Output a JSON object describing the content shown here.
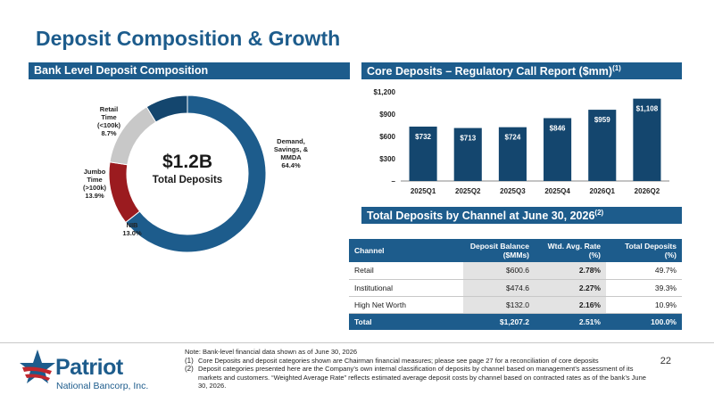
{
  "page": {
    "title": "Deposit Composition & Growth",
    "page_number": "22"
  },
  "left_section": {
    "header": "Bank Level Deposit Composition",
    "center_value": "$1.2B",
    "center_label": "Total Deposits",
    "segments": [
      {
        "name": "Demand, Savings, & MMDA",
        "pct_label": "64.4%",
        "pct": 64.4,
        "color": "#1d5c8c"
      },
      {
        "name": "NIB",
        "pct_label": "13.0%",
        "pct": 13.0,
        "color": "#9b1b1f"
      },
      {
        "name": "Jumbo Time (>100k)",
        "pct_label": "13.9%",
        "pct": 13.9,
        "color": "#c8c8c8"
      },
      {
        "name": "Retail Time (<100k)",
        "pct_label": "8.7%",
        "pct": 8.7,
        "color": "#14466e"
      }
    ]
  },
  "chart_section": {
    "header": "Core Deposits – Regulatory Call Report ($mm)",
    "header_sup": "(1)"
  },
  "table_section": {
    "header": "Total Deposits by Channel at June 30, 2026",
    "header_sup": "(2)",
    "columns": [
      "Channel",
      "Deposit Balance ($MMs)",
      "Wtd. Avg. Rate (%)",
      "Total Deposits (%)"
    ],
    "col_header_lines": [
      [
        "Channel",
        ""
      ],
      [
        "Deposit Balance",
        "($MMs)"
      ],
      [
        "Wtd. Avg. Rate",
        "(%)"
      ],
      [
        "Total Deposits",
        "(%)"
      ]
    ],
    "rows": [
      [
        "Retail",
        "$600.6",
        "2.78%",
        "49.7%"
      ],
      [
        "Institutional",
        "$474.6",
        "2.27%",
        "39.3%"
      ],
      [
        "High Net Worth",
        "$132.0",
        "2.16%",
        "10.9%"
      ]
    ],
    "total": [
      "Total",
      "$1,207.2",
      "2.51%",
      "100.0%"
    ]
  },
  "chart_data": [
    {
      "type": "pie",
      "title": "Bank Level Deposit Composition",
      "categories": [
        "Demand, Savings, & MMDA",
        "NIB",
        "Jumbo Time (>100k)",
        "Retail Time (<100k)"
      ],
      "values": [
        64.4,
        13.0,
        13.9,
        8.7
      ]
    },
    {
      "type": "bar",
      "title": "Core Deposits – Regulatory Call Report ($mm)",
      "categories": [
        "2025Q1",
        "2025Q2",
        "2025Q3",
        "2025Q4",
        "2026Q1",
        "2026Q2"
      ],
      "values": [
        732,
        713,
        724,
        846,
        959,
        1108
      ],
      "value_labels": [
        "$732",
        "$713",
        "$724",
        "$846",
        "$959",
        "$1,108"
      ],
      "y_ticks": [
        0,
        300,
        600,
        900,
        1200
      ],
      "y_tick_labels": [
        "–",
        "$300",
        "$600",
        "$900",
        "$1,200"
      ],
      "ylim": [
        0,
        1200
      ],
      "bar_color": "#14466e"
    }
  ],
  "notes": {
    "intro": "Note: Bank-level financial data shown as of June 30, 2026",
    "items": [
      {
        "num": "(1)",
        "text": "Core Deposits and deposit categories shown are Chairman financial measures; please see page 27 for a reconciliation of core deposits"
      },
      {
        "num": "(2)",
        "text": "Deposit categories presented here are the Company’s own internal classification of deposits by channel based on management’s assessment of its markets and customers. “Weighted Average Rate” reflects estimated average deposit costs by channel based on contracted rates as of the bank’s June 30, 2026."
      }
    ]
  },
  "logo": {
    "name": "Patriot",
    "sub": "National Bancorp, Inc."
  }
}
